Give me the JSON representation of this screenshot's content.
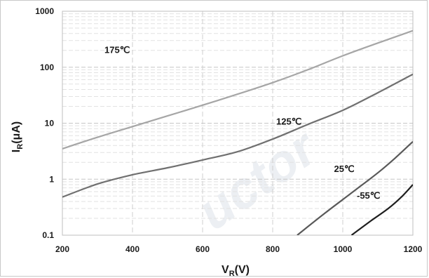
{
  "chart_data": {
    "type": "line",
    "title": "",
    "xlabel": {
      "main": "V",
      "sub": "R",
      "unit": "(V)"
    },
    "ylabel": {
      "main": "I",
      "sub": "R",
      "unit": "(μA)"
    },
    "x_scale": "linear",
    "y_scale": "log",
    "xlim": [
      200,
      1200
    ],
    "ylim": [
      0.1,
      1000
    ],
    "x_ticks": [
      "200",
      "400",
      "600",
      "800",
      "1000",
      "1200"
    ],
    "y_ticks": [
      "0.1",
      "1",
      "10",
      "100",
      "1000"
    ],
    "grid": "dashed",
    "legend": "none (inline curve labels)",
    "watermark": "uctor",
    "series": [
      {
        "name": "175℃",
        "color": "#a6a6a6",
        "label_at": [
          320,
          180
        ],
        "x": [
          200,
          300,
          400,
          500,
          600,
          700,
          800,
          900,
          1000,
          1100,
          1200
        ],
        "y": [
          3.5,
          5.6,
          8.7,
          13.5,
          21,
          33,
          53,
          90,
          160,
          270,
          450
        ]
      },
      {
        "name": "125℃",
        "color": "#707070",
        "label_at": [
          810,
          9.5
        ],
        "x": [
          200,
          300,
          400,
          500,
          600,
          700,
          800,
          900,
          1000,
          1100,
          1200
        ],
        "y": [
          0.48,
          0.82,
          1.2,
          1.6,
          2.2,
          3.1,
          5.2,
          9.5,
          17,
          35,
          75
        ]
      },
      {
        "name": "25℃",
        "color": "#595959",
        "label_at": [
          975,
          1.35
        ],
        "x": [
          870,
          950,
          1030,
          1100,
          1150,
          1200
        ],
        "y": [
          0.1,
          0.25,
          0.6,
          1.3,
          2.4,
          4.7
        ]
      },
      {
        "name": "-55℃",
        "color": "#1f1f1f",
        "label_at": [
          1040,
          0.45
        ],
        "x": [
          1025,
          1080,
          1130,
          1170,
          1200
        ],
        "y": [
          0.1,
          0.18,
          0.3,
          0.5,
          0.8
        ]
      }
    ]
  }
}
